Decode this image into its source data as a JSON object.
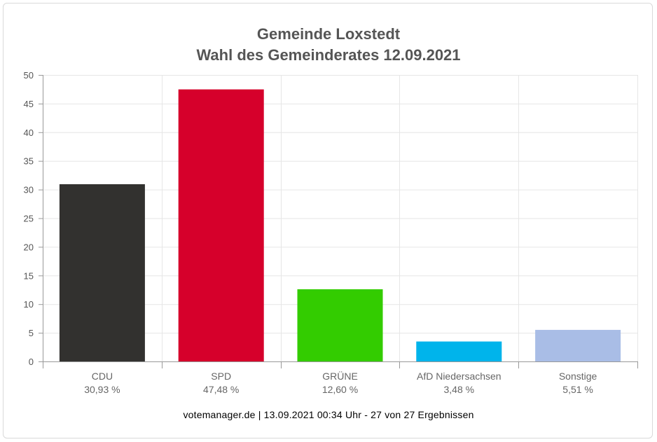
{
  "chart_data": {
    "type": "bar",
    "title": "Gemeinde Loxstedt",
    "subtitle": "Wahl des Gemeinderates 12.09.2021",
    "categories": [
      "CDU",
      "SPD",
      "GRÜNE",
      "AfD Niedersachsen",
      "Sonstige"
    ],
    "values": [
      30.93,
      47.48,
      12.6,
      3.48,
      5.51
    ],
    "value_labels": [
      "30,93 %",
      "47,48 %",
      "12,60 %",
      "3,48 %",
      "5,51 %"
    ],
    "colors": [
      "#32312f",
      "#d6002b",
      "#33cc00",
      "#00b4eb",
      "#a9bde6"
    ],
    "ylim": [
      0,
      50
    ],
    "yticks": [
      0,
      5,
      10,
      15,
      20,
      25,
      30,
      35,
      40,
      45,
      50
    ],
    "grid": true,
    "xlabel": "",
    "ylabel": ""
  },
  "footer": "votemanager.de | 13.09.2021 00:34 Uhr - 27 von 27 Ergebnissen"
}
